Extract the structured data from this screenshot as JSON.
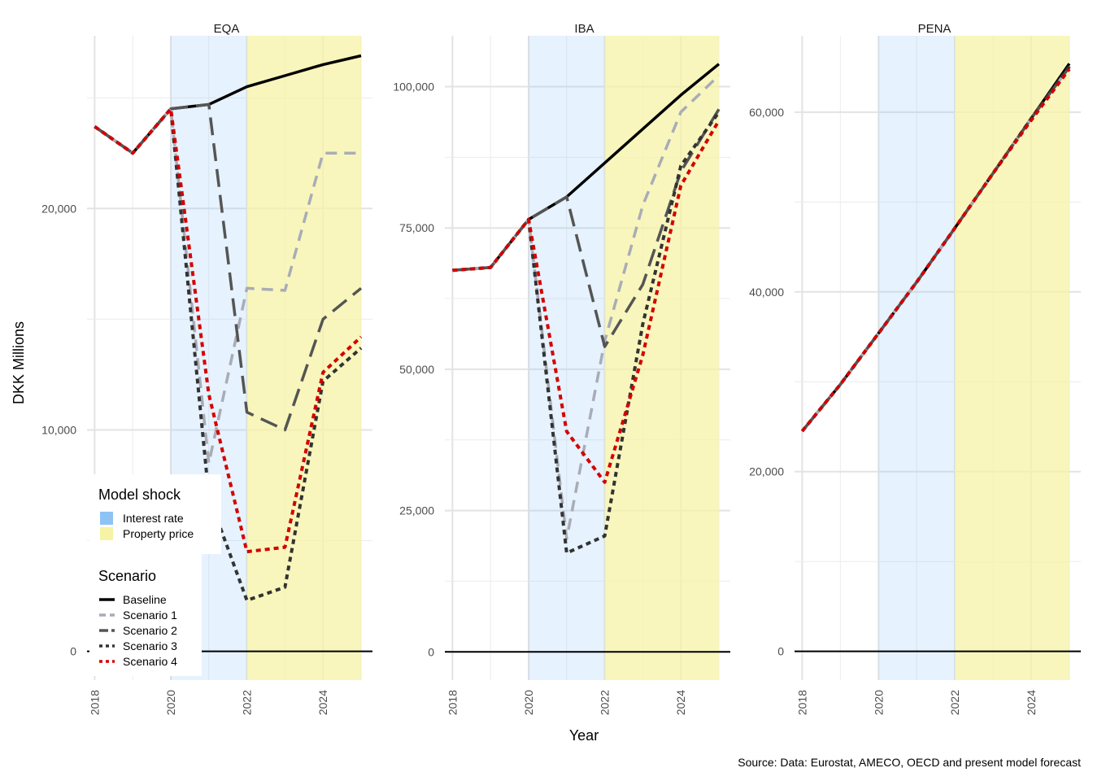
{
  "chart_data": {
    "type": "line",
    "ylabel": "DKK Millions",
    "xlabel": "Year",
    "caption": "Source: Data: Eurostat, AMECO, OECD and present model forecast",
    "x_ticks": [
      2018,
      2020,
      2022,
      2024
    ],
    "x_tick_labels": [
      "2018",
      "2020",
      "2022",
      "2024"
    ],
    "x_range": [
      2017.8,
      2025.3
    ],
    "shocks": [
      {
        "name": "Interest rate",
        "from": 2020,
        "to": 2022,
        "color": "#8ec3f5"
      },
      {
        "name": "Property price",
        "from": 2022,
        "to": 2025,
        "color": "#f6f3a5"
      }
    ],
    "series_styles": [
      {
        "name": "Baseline",
        "color": "#000000",
        "dash": "solid"
      },
      {
        "name": "Scenario 1",
        "color": "#a9acb6",
        "dash": "dashed"
      },
      {
        "name": "Scenario 2",
        "color": "#555555",
        "dash": "longdash"
      },
      {
        "name": "Scenario 3",
        "color": "#333333",
        "dash": "dotted"
      },
      {
        "name": "Scenario 4",
        "color": "#d40000",
        "dash": "dotted"
      }
    ],
    "x": [
      2018,
      2019,
      2020,
      2021,
      2022,
      2023,
      2024,
      2025
    ],
    "panels": [
      {
        "title": "EQA",
        "ylim": [
          -1300,
          27800
        ],
        "y_ticks": [
          0,
          10000,
          20000
        ],
        "y_tick_labels": [
          "0",
          "10,000",
          "20,000"
        ],
        "y_minor": [
          5000,
          15000,
          25000
        ],
        "series": [
          {
            "name": "Baseline",
            "values": [
              23700,
              22500,
              24500,
              24700,
              25500,
              26000,
              26500,
              26900
            ]
          },
          {
            "name": "Scenario 1",
            "values": [
              23700,
              22500,
              24500,
              8500,
              16400,
              16300,
              22500,
              22500
            ]
          },
          {
            "name": "Scenario 2",
            "values": [
              23700,
              22500,
              24500,
              24700,
              10800,
              10000,
              15000,
              16400
            ]
          },
          {
            "name": "Scenario 3",
            "values": [
              23700,
              22500,
              24500,
              7000,
              2300,
              2900,
              12200,
              13700
            ]
          },
          {
            "name": "Scenario 4",
            "values": [
              23700,
              22500,
              24500,
              11600,
              4500,
              4700,
              12600,
              14200
            ]
          }
        ]
      },
      {
        "title": "IBA",
        "ylim": [
          -5000,
          109000
        ],
        "y_ticks": [
          0,
          25000,
          50000,
          75000,
          100000
        ],
        "y_tick_labels": [
          "0",
          "25,000",
          "50,000",
          "75,000",
          "100,000"
        ],
        "y_minor": [
          12500,
          37500,
          62500,
          87500
        ],
        "series": [
          {
            "name": "Baseline",
            "values": [
              67500,
              68000,
              76500,
              80500,
              86500,
              92500,
              98500,
              104000
            ]
          },
          {
            "name": "Scenario 1",
            "values": [
              67500,
              68000,
              76500,
              20000,
              55000,
              79000,
              95500,
              102000
            ]
          },
          {
            "name": "Scenario 2",
            "values": [
              67500,
              68000,
              76500,
              80500,
              54000,
              65000,
              85000,
              96000
            ]
          },
          {
            "name": "Scenario 3",
            "values": [
              67500,
              68000,
              76500,
              17500,
              20500,
              58000,
              86000,
              95500
            ]
          },
          {
            "name": "Scenario 4",
            "values": [
              67500,
              68000,
              76500,
              39000,
              30000,
              52500,
              82500,
              94000
            ]
          }
        ]
      },
      {
        "title": "PENA",
        "ylim": [
          -3200,
          68500
        ],
        "y_ticks": [
          0,
          20000,
          40000,
          60000
        ],
        "y_tick_labels": [
          "0",
          "20,000",
          "40,000",
          "60,000"
        ],
        "y_minor": [
          10000,
          30000,
          50000
        ],
        "series": [
          {
            "name": "Baseline",
            "values": [
              24500,
              29700,
              35400,
              41100,
              47100,
              53200,
              59300,
              65400
            ]
          },
          {
            "name": "Scenario 1",
            "values": [
              24500,
              29700,
              35400,
              41100,
              47100,
              53200,
              59300,
              65000
            ]
          },
          {
            "name": "Scenario 2",
            "values": [
              24500,
              29700,
              35400,
              41100,
              47100,
              53200,
              59300,
              65000
            ]
          },
          {
            "name": "Scenario 3",
            "values": [
              24500,
              29700,
              35400,
              41100,
              47100,
              53200,
              59300,
              65100
            ]
          },
          {
            "name": "Scenario 4",
            "values": [
              24500,
              29700,
              35400,
              41100,
              47100,
              53200,
              59100,
              64800
            ]
          }
        ]
      }
    ],
    "legend": {
      "shock_title": "Model shock",
      "shock_items": [
        "Interest rate",
        "Property price"
      ],
      "scenario_title": "Scenario",
      "scenario_items": [
        "Baseline",
        "Scenario 1",
        "Scenario 2",
        "Scenario 3",
        "Scenario 4"
      ],
      "position": "bottom-left"
    }
  }
}
